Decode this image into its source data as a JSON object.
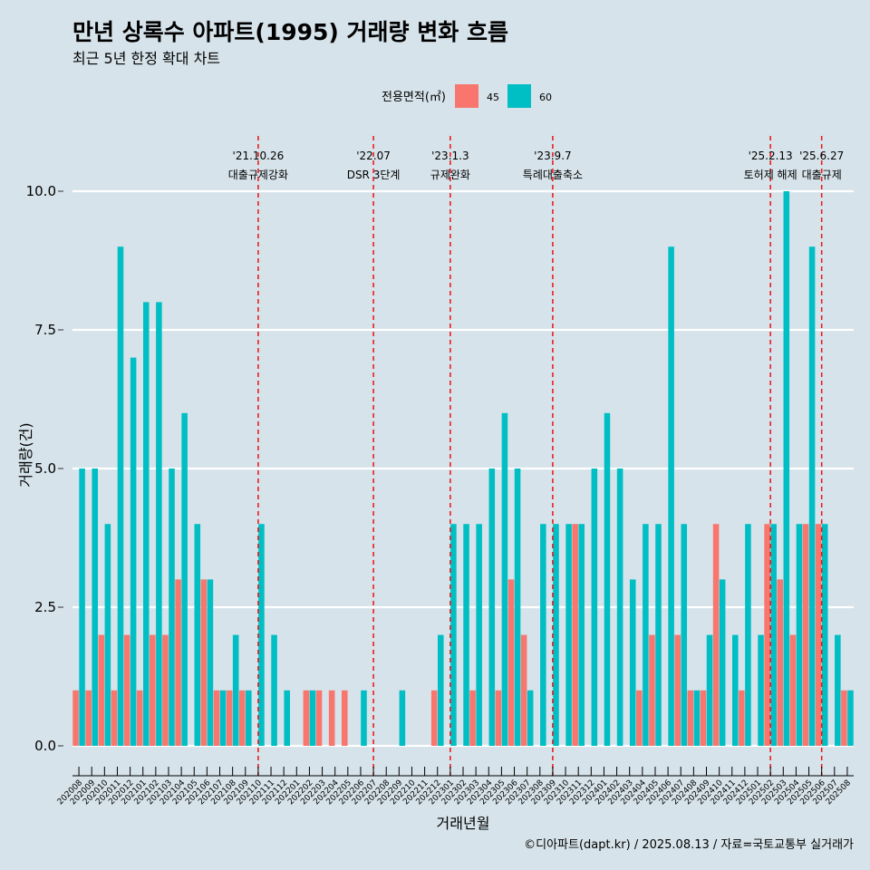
{
  "chart_data": {
    "type": "bar",
    "title": "만년 상록수 아파트(1995) 거래량 변화 흐름",
    "subtitle": "최근 5년 한정 확대 차트",
    "xlabel": "거래년월",
    "ylabel": "거래량(건)",
    "ylim": [
      0,
      10
    ],
    "yticks": [
      "0.0",
      "2.5",
      "5.0",
      "7.5",
      "10.0"
    ],
    "legend": {
      "title": "전용면적(㎡)",
      "position": "top",
      "entries": [
        {
          "name": "45",
          "color": "#f8766d"
        },
        {
          "name": "60",
          "color": "#00bfc4"
        }
      ]
    },
    "categories": [
      "202008",
      "202009",
      "202010",
      "202011",
      "202012",
      "202101",
      "202102",
      "202103",
      "202104",
      "202105",
      "202106",
      "202107",
      "202108",
      "202109",
      "202110",
      "202111",
      "202112",
      "202201",
      "202202",
      "202203",
      "202204",
      "202205",
      "202206",
      "202207",
      "202208",
      "202209",
      "202210",
      "202211",
      "202212",
      "202301",
      "202302",
      "202303",
      "202304",
      "202305",
      "202306",
      "202307",
      "202308",
      "202309",
      "202310",
      "202311",
      "202312",
      "202401",
      "202402",
      "202403",
      "202404",
      "202405",
      "202406",
      "202407",
      "202408",
      "202409",
      "202410",
      "202411",
      "202412",
      "202501",
      "202502",
      "202503",
      "202504",
      "202505",
      "202506",
      "202507",
      "202508"
    ],
    "series": [
      {
        "name": "45",
        "color": "#f8766d",
        "values": [
          1,
          1,
          2,
          1,
          2,
          1,
          2,
          2,
          3,
          0,
          3,
          1,
          1,
          1,
          0,
          0,
          0,
          0,
          1,
          1,
          1,
          1,
          0,
          0,
          0,
          0,
          0,
          0,
          1,
          0,
          0,
          1,
          0,
          1,
          3,
          2,
          0,
          0,
          0,
          4,
          0,
          0,
          0,
          0,
          1,
          2,
          0,
          2,
          1,
          1,
          4,
          0,
          1,
          0,
          4,
          3,
          2,
          4,
          4,
          0,
          1
        ]
      },
      {
        "name": "60",
        "color": "#00bfc4",
        "values": [
          5,
          5,
          4,
          9,
          7,
          8,
          8,
          5,
          6,
          4,
          3,
          1,
          2,
          1,
          4,
          2,
          1,
          0,
          1,
          0,
          0,
          0,
          1,
          0,
          0,
          1,
          0,
          0,
          2,
          4,
          4,
          4,
          5,
          6,
          5,
          1,
          4,
          4,
          4,
          4,
          5,
          6,
          5,
          3,
          4,
          4,
          9,
          4,
          1,
          2,
          3,
          2,
          4,
          2,
          4,
          10,
          4,
          9,
          4,
          2,
          1
        ]
      }
    ],
    "annotations": [
      {
        "category": "202110",
        "date": "'21.10.26",
        "label": "대출규제강화"
      },
      {
        "category": "202207",
        "date": "'22.07",
        "label": "DSR 3단계"
      },
      {
        "category": "202301",
        "date": "'23.1.3",
        "label": "규제완화"
      },
      {
        "category": "202309",
        "date": "'23.9.7",
        "label": "특례대출축소"
      },
      {
        "category": "202502",
        "date": "'25.2.13",
        "label": "토허제 해제"
      },
      {
        "category": "202506",
        "date": "'25.6.27",
        "label": "대출규제"
      }
    ]
  },
  "caption": "©디아파트(dapt.kr) / 2025.08.13 / 자료=국토교통부 실거래가"
}
